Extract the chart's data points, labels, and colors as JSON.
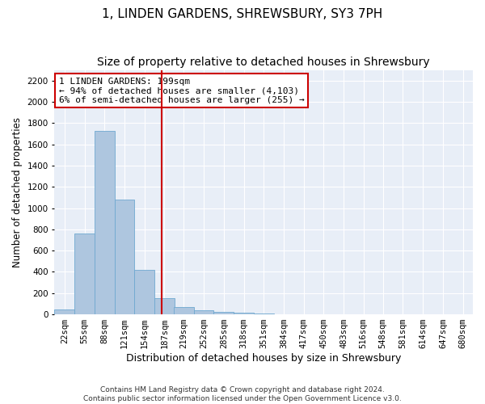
{
  "title": "1, LINDEN GARDENS, SHREWSBURY, SY3 7PH",
  "subtitle": "Size of property relative to detached houses in Shrewsbury",
  "xlabel": "Distribution of detached houses by size in Shrewsbury",
  "ylabel": "Number of detached properties",
  "footer_line1": "Contains HM Land Registry data © Crown copyright and database right 2024.",
  "footer_line2": "Contains public sector information licensed under the Open Government Licence v3.0.",
  "bin_labels": [
    "22sqm",
    "55sqm",
    "88sqm",
    "121sqm",
    "154sqm",
    "187sqm",
    "219sqm",
    "252sqm",
    "285sqm",
    "318sqm",
    "351sqm",
    "384sqm",
    "417sqm",
    "450sqm",
    "483sqm",
    "516sqm",
    "548sqm",
    "581sqm",
    "614sqm",
    "647sqm",
    "680sqm"
  ],
  "bin_left_edges": [
    22,
    55,
    88,
    121,
    154,
    187,
    219,
    252,
    285,
    318,
    351,
    384,
    417,
    450,
    483,
    516,
    548,
    581,
    614,
    647,
    680
  ],
  "bar_heights": [
    50,
    760,
    1730,
    1080,
    420,
    155,
    70,
    35,
    25,
    18,
    10,
    0,
    0,
    0,
    0,
    0,
    0,
    0,
    0,
    0,
    0
  ],
  "bar_color": "#aec6df",
  "bar_edge_color": "#6fa8d0",
  "property_size": 199,
  "red_line_color": "#cc0000",
  "annotation_line1": "1 LINDEN GARDENS: 199sqm",
  "annotation_line2": "← 94% of detached houses are smaller (4,103)",
  "annotation_line3": "6% of semi-detached houses are larger (255) →",
  "annotation_box_color": "#cc0000",
  "ylim": [
    0,
    2300
  ],
  "yticks": [
    0,
    200,
    400,
    600,
    800,
    1000,
    1200,
    1400,
    1600,
    1800,
    2000,
    2200
  ],
  "bg_color": "#e8eef7",
  "grid_color": "#ffffff",
  "title_fontsize": 11,
  "subtitle_fontsize": 10,
  "xlabel_fontsize": 9,
  "ylabel_fontsize": 8.5,
  "tick_fontsize": 7.5,
  "annotation_fontsize": 8,
  "footer_fontsize": 6.5
}
